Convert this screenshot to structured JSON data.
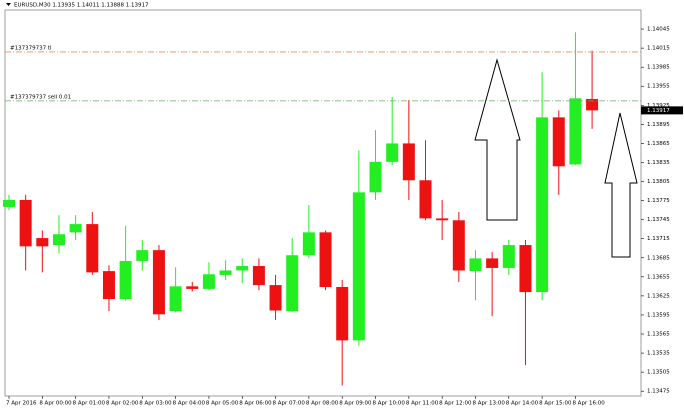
{
  "chart_data": {
    "type": "candlestick",
    "title": "EURUSD,M30 1.13935 1.14011 1.13888 1.13917",
    "up_color": "#22ee22",
    "down_color": "#ee1111",
    "open": [
      1.13765,
      1.13776,
      1.13716,
      1.13705,
      1.13725,
      1.13738,
      1.13664,
      1.1362,
      1.1368,
      1.13697,
      1.13601,
      1.1364,
      1.13636,
      1.13658,
      1.13665,
      1.13672,
      1.13642,
      1.13601,
      1.13689,
      1.13725,
      1.13639,
      1.13555,
      1.13788,
      1.13836,
      1.13865,
      1.13807,
      1.13747,
      1.13744,
      1.13664,
      1.13684,
      1.13669,
      1.13705,
      1.13631,
      1.13906,
      1.13832,
      1.13935
    ],
    "high": [
      1.13784,
      1.13784,
      1.13728,
      1.13752,
      1.13752,
      1.13757,
      1.13673,
      1.13735,
      1.13713,
      1.13705,
      1.1367,
      1.13647,
      1.13678,
      1.13681,
      1.13684,
      1.13684,
      1.13658,
      1.13716,
      1.13768,
      1.13728,
      1.1365,
      1.13854,
      1.13886,
      1.13938,
      1.13933,
      1.1387,
      1.13776,
      1.13757,
      1.13697,
      1.13694,
      1.13713,
      1.13713,
      1.13977,
      1.13917,
      1.1404,
      1.14011
    ],
    "low": [
      1.1376,
      1.13665,
      1.13662,
      1.13692,
      1.13713,
      1.13658,
      1.13601,
      1.13618,
      1.13665,
      1.13587,
      1.13599,
      1.13632,
      1.13634,
      1.1365,
      1.13645,
      1.13634,
      1.13587,
      1.13599,
      1.13684,
      1.13634,
      1.13484,
      1.13547,
      1.13776,
      1.13831,
      1.13776,
      1.13744,
      1.13713,
      1.13647,
      1.13618,
      1.13593,
      1.13658,
      1.13516,
      1.13618,
      1.13784,
      1.13831,
      1.13888
    ],
    "close": [
      1.13776,
      1.13703,
      1.13703,
      1.13722,
      1.13738,
      1.13662,
      1.1362,
      1.1368,
      1.13697,
      1.13596,
      1.1364,
      1.13636,
      1.13659,
      1.13665,
      1.13672,
      1.13642,
      1.13602,
      1.13689,
      1.13725,
      1.13639,
      1.13555,
      1.13788,
      1.13836,
      1.13865,
      1.13807,
      1.13747,
      1.13744,
      1.13665,
      1.13684,
      1.13669,
      1.13705,
      1.13631,
      1.13906,
      1.13829,
      1.13936,
      1.13917
    ],
    "ylim": [
      1.13469,
      1.14075
    ],
    "yticks": [
      1.14045,
      1.14015,
      1.13985,
      1.13955,
      1.13925,
      1.13895,
      1.13865,
      1.13835,
      1.13805,
      1.13775,
      1.13745,
      1.13715,
      1.13685,
      1.13655,
      1.13625,
      1.13595,
      1.13565,
      1.13535,
      1.13505,
      1.13475
    ],
    "xticks": [
      {
        "value": 0,
        "label": "7 Apr 2016"
      },
      {
        "value": 2,
        "label": "8 Apr 00:00"
      },
      {
        "value": 4,
        "label": "8 Apr 01:00"
      },
      {
        "value": 6,
        "label": "8 Apr 02:00"
      },
      {
        "value": 8,
        "label": "8 Apr 03:00"
      },
      {
        "value": 10,
        "label": "8 Apr 04:00"
      },
      {
        "value": 12,
        "label": "8 Apr 05:00"
      },
      {
        "value": 14,
        "label": "8 Apr 06:00"
      },
      {
        "value": 16,
        "label": "8 Apr 07:00"
      },
      {
        "value": 18,
        "label": "8 Apr 08:00"
      },
      {
        "value": 20,
        "label": "8 Apr 09:00"
      },
      {
        "value": 22,
        "label": "8 Apr 10:00"
      },
      {
        "value": 24,
        "label": "8 Apr 11:00"
      },
      {
        "value": 26,
        "label": "8 Apr 12:00"
      },
      {
        "value": 28,
        "label": "8 Apr 13:00"
      },
      {
        "value": 30,
        "label": "8 Apr 14:00"
      },
      {
        "value": 32,
        "label": "8 Apr 15:00"
      },
      {
        "value": 34,
        "label": "8 Apr 16:00"
      }
    ],
    "hlines": [
      {
        "label": "#137379737 tl",
        "value": 1.14009,
        "color": "#f08a5d"
      },
      {
        "label": "#137379737 sell 0.01",
        "value": 1.13932,
        "color": "#6aa86a"
      }
    ],
    "current_price": 1.13917
  }
}
